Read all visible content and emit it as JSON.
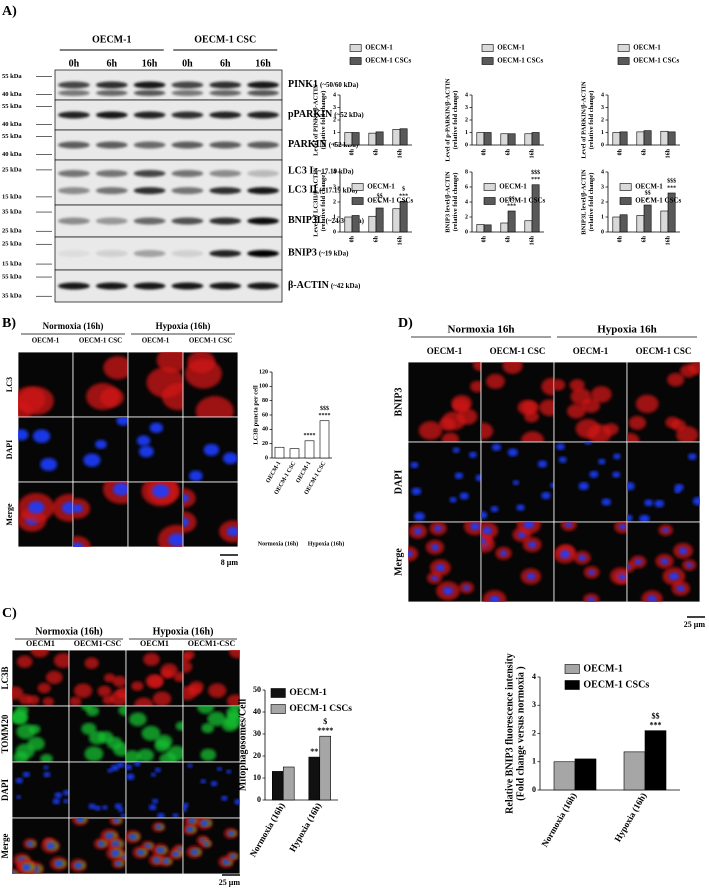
{
  "figure": {
    "panel_a": {
      "label": "A)",
      "blot": {
        "groups": [
          "OECM-1",
          "OECM-1 CSC"
        ],
        "times": [
          "0h",
          "6h",
          "16h",
          "0h",
          "6h",
          "16h"
        ],
        "rows": [
          {
            "markers": [
              "55 kDa",
              "40 kDa"
            ],
            "proteins": [
              {
                "name": "PINK1",
                "size": "(~50/60 kDa)"
              }
            ]
          },
          {
            "markers": [
              "55 kDa",
              "40 kDa"
            ],
            "proteins": [
              {
                "name": "pPARKIN",
                "size": "(~52 kDa)"
              }
            ]
          },
          {
            "markers": [
              "55 kDa",
              "40 kDa"
            ],
            "proteins": [
              {
                "name": "PARKIN",
                "size": "(~52 kDa)"
              }
            ]
          },
          {
            "markers": [
              "25 kDa",
              "15 kDa"
            ],
            "proteins": [
              {
                "name": "LC3 I",
                "size": "(~17.19 kDa)"
              },
              {
                "name": "LC3 II",
                "size": "(~17.19 kDa)"
              }
            ]
          },
          {
            "markers": [
              "35 kDa",
              "25 kDa"
            ],
            "proteins": [
              {
                "name": "BNIP3L",
                "size": "(~24/30 kDa)"
              }
            ]
          },
          {
            "markers": [
              "25 kDa",
              "15 kDa"
            ],
            "proteins": [
              {
                "name": "BNIP3",
                "size": "(~19 kDa)"
              }
            ]
          },
          {
            "markers": [
              "55 kDa",
              "35 kDa"
            ],
            "proteins": [
              {
                "name": "β-ACTIN",
                "size": "(~42 kDa)"
              }
            ]
          }
        ]
      }
    },
    "panel_b": {
      "label": "B)",
      "conditions": [
        "Normoxia (16h)",
        "Hypoxia (16h)"
      ],
      "cells": [
        "OECM-1",
        "OECM-1 CSC",
        "OECM-1",
        "OECM-1 CSC"
      ],
      "channels": [
        "LC3",
        "DAPI",
        "Merge"
      ],
      "scale_bar": "8 μm"
    },
    "panel_c": {
      "label": "C)",
      "conditions": [
        "Normoxia (16h)",
        "Hypoxia (16h)"
      ],
      "cells": [
        "OECM1",
        "OECM1-CSC",
        "OECM1",
        "OECM1-CSC"
      ],
      "channels": [
        "LC3B",
        "TOMM20",
        "DAPI",
        "Merge"
      ],
      "scale_bar": "25 μm"
    },
    "panel_d": {
      "label": "D)",
      "conditions": [
        "Normoxia 16h",
        "Hypoxia 16h"
      ],
      "cells": [
        "OECM-1",
        "OECM-1 CSC",
        "OECM-1",
        "OECM-1 CSC"
      ],
      "channels": [
        "BNIP3",
        "DAPI",
        "Merge"
      ],
      "scale_bar": "25 μm"
    }
  },
  "chart_data": [
    {
      "type": "bar",
      "ylabel": [
        "Level of PINK1/β-ACTIN",
        "(relative fold change)"
      ],
      "categories": [
        "0h",
        "6h",
        "16h"
      ],
      "ylim": [
        0,
        4
      ],
      "yticks": [
        0,
        1,
        2,
        3,
        4
      ],
      "series": [
        {
          "name": "OECM-1",
          "color": "#d9d9d9",
          "values": [
            1,
            0.95,
            1.25
          ]
        },
        {
          "name": "OECM-1 CSCs",
          "color": "#595959",
          "values": [
            1,
            1.05,
            1.3
          ]
        }
      ]
    },
    {
      "type": "bar",
      "ylabel": [
        "Level of p-PARKIN/β-ACTIN",
        "(relative fold change)"
      ],
      "categories": [
        "0h",
        "6h",
        "16h"
      ],
      "ylim": [
        0,
        4
      ],
      "yticks": [
        0,
        1,
        2,
        3,
        4
      ],
      "series": [
        {
          "name": "OECM-1",
          "color": "#d9d9d9",
          "values": [
            1,
            0.9,
            0.9
          ]
        },
        {
          "name": "OECM-1 CSCs",
          "color": "#595959",
          "values": [
            1,
            0.9,
            1
          ]
        }
      ]
    },
    {
      "type": "bar",
      "ylabel": [
        "Level of PARKIN/β-ACTIN",
        "(relative fold change)"
      ],
      "categories": [
        "0h",
        "6h",
        "16h"
      ],
      "ylim": [
        0,
        4
      ],
      "yticks": [
        0,
        1,
        2,
        3,
        4
      ],
      "series": [
        {
          "name": "OECM-1",
          "color": "#d9d9d9",
          "values": [
            1,
            1.05,
            1.1
          ]
        },
        {
          "name": "OECM-1 CSCs",
          "color": "#595959",
          "values": [
            1.05,
            1.15,
            1.05
          ]
        }
      ]
    },
    {
      "type": "bar",
      "ylabel": [
        "Level of LC3II/β-ACTIN",
        "(relative fold change)"
      ],
      "categories": [
        "0h",
        "6h",
        "16h"
      ],
      "ylim": [
        0,
        4
      ],
      "yticks": [
        0,
        1,
        2,
        3,
        4
      ],
      "series": [
        {
          "name": "OECM-1",
          "color": "#d9d9d9",
          "values": [
            1,
            1.05,
            1.55
          ]
        },
        {
          "name": "OECM-1 CSCs",
          "color": "#595959",
          "values": [
            1.1,
            1.6,
            2.05
          ],
          "sig": [
            null,
            [
              "$$",
              "*"
            ],
            [
              "$",
              "***"
            ]
          ]
        }
      ]
    },
    {
      "type": "bar",
      "ylabel": [
        "BNIP3 level/β-ACTIN",
        "(relative fold change)"
      ],
      "categories": [
        "0h",
        "6h",
        "16h"
      ],
      "ylim": [
        0,
        8
      ],
      "yticks": [
        0,
        2,
        4,
        6,
        8
      ],
      "series": [
        {
          "name": "OECM-1",
          "color": "#d9d9d9",
          "values": [
            1,
            1.2,
            1.5
          ]
        },
        {
          "name": "OECM-1 CSCs",
          "color": "#595959",
          "values": [
            0.95,
            2.8,
            6.3
          ],
          "sig": [
            null,
            [
              "$$",
              "***"
            ],
            [
              "$$$",
              "***"
            ]
          ]
        }
      ]
    },
    {
      "type": "bar",
      "ylabel": [
        "BNIP3L level/β-ACTIN",
        "(relative fold change)"
      ],
      "categories": [
        "0h",
        "6h",
        "16h"
      ],
      "ylim": [
        0,
        4
      ],
      "yticks": [
        0,
        1,
        2,
        3,
        4
      ],
      "series": [
        {
          "name": "OECM-1",
          "color": "#d9d9d9",
          "values": [
            1,
            1.1,
            1.4
          ]
        },
        {
          "name": "OECM-1 CSCs",
          "color": "#595959",
          "values": [
            1.15,
            1.8,
            2.6
          ],
          "sig": [
            null,
            [
              "$$",
              "*"
            ],
            [
              "$$$",
              "***"
            ]
          ]
        }
      ]
    },
    {
      "type": "bar",
      "ylabel": [
        "LC3B puncta per cell"
      ],
      "categories": [
        "OECM-1",
        "OECM-1 CSC",
        "OECM-1",
        "OECM-1 CSC"
      ],
      "groups": [
        "Normoxia (16h)",
        "Hypoxia (16h)"
      ],
      "ylim": [
        0,
        120
      ],
      "yticks": [
        0,
        20,
        40,
        60,
        80,
        100,
        120
      ],
      "values": [
        15,
        13,
        24,
        52
      ],
      "color": "#ffffff",
      "sig": [
        null,
        null,
        [
          "****"
        ],
        [
          "$$$",
          "****"
        ]
      ]
    },
    {
      "type": "bar",
      "ylabel": [
        "Mitophagosomes/Cell"
      ],
      "categories": [
        "Normoxia (16h)",
        "Hypoxia (16h)"
      ],
      "ylim": [
        0,
        50
      ],
      "yticks": [
        0,
        10,
        20,
        30,
        40,
        50
      ],
      "series": [
        {
          "name": "OECM-1",
          "color": "#111111",
          "values": [
            13,
            19.5
          ],
          "sig": [
            null,
            [
              "**"
            ]
          ]
        },
        {
          "name": "OECM-1 CSCs",
          "color": "#a6a6a6",
          "values": [
            15,
            29
          ],
          "sig": [
            null,
            [
              "$",
              "****"
            ]
          ]
        }
      ]
    },
    {
      "type": "bar",
      "ylabel": [
        "Relative BNIP3 fluorescence intensity",
        "(Fold change versus normoxia )"
      ],
      "categories": [
        "Normoxia (16h)",
        "Hypoxia (16h)"
      ],
      "ylim": [
        0,
        4
      ],
      "yticks": [
        0,
        1,
        2,
        3,
        4
      ],
      "series": [
        {
          "name": "OECM-1",
          "color": "#a6a6a6",
          "values": [
            1,
            1.35
          ]
        },
        {
          "name": "OECM-1 CSCs",
          "color": "#000000",
          "values": [
            1.1,
            2.1
          ],
          "sig": [
            null,
            [
              "$$",
              "***"
            ]
          ]
        }
      ]
    }
  ]
}
